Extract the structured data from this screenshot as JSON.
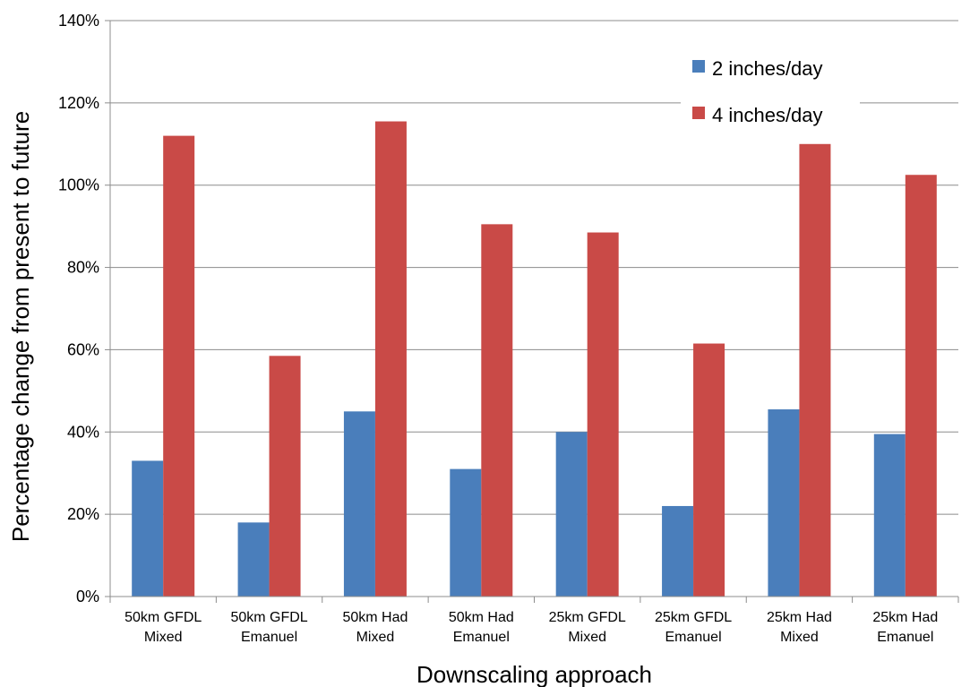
{
  "chart_data": {
    "type": "bar",
    "categories": [
      [
        "50km GFDL",
        "Mixed"
      ],
      [
        "50km GFDL",
        "Emanuel"
      ],
      [
        "50km Had",
        "Mixed"
      ],
      [
        "50km Had",
        "Emanuel"
      ],
      [
        "25km GFDL",
        "Mixed"
      ],
      [
        "25km GFDL",
        "Emanuel"
      ],
      [
        "25km Had",
        "Mixed"
      ],
      [
        "25km Had",
        "Emanuel"
      ]
    ],
    "series": [
      {
        "name": "2 inches/day",
        "color": "#4a7ebb",
        "values": [
          0.33,
          0.18,
          0.45,
          0.31,
          0.4,
          0.22,
          0.455,
          0.395
        ]
      },
      {
        "name": "4 inches/day",
        "color": "#c94a47",
        "values": [
          1.12,
          0.585,
          1.155,
          0.905,
          0.885,
          0.615,
          1.1,
          1.025
        ]
      }
    ],
    "xlabel": "Downscaling approach",
    "ylabel": "Percentage change from present to future",
    "ylim": [
      0,
      1.4
    ],
    "yticks": [
      "0%",
      "20%",
      "40%",
      "60%",
      "80%",
      "100%",
      "120%",
      "140%"
    ],
    "grid": true,
    "legend_position": "top-right"
  }
}
